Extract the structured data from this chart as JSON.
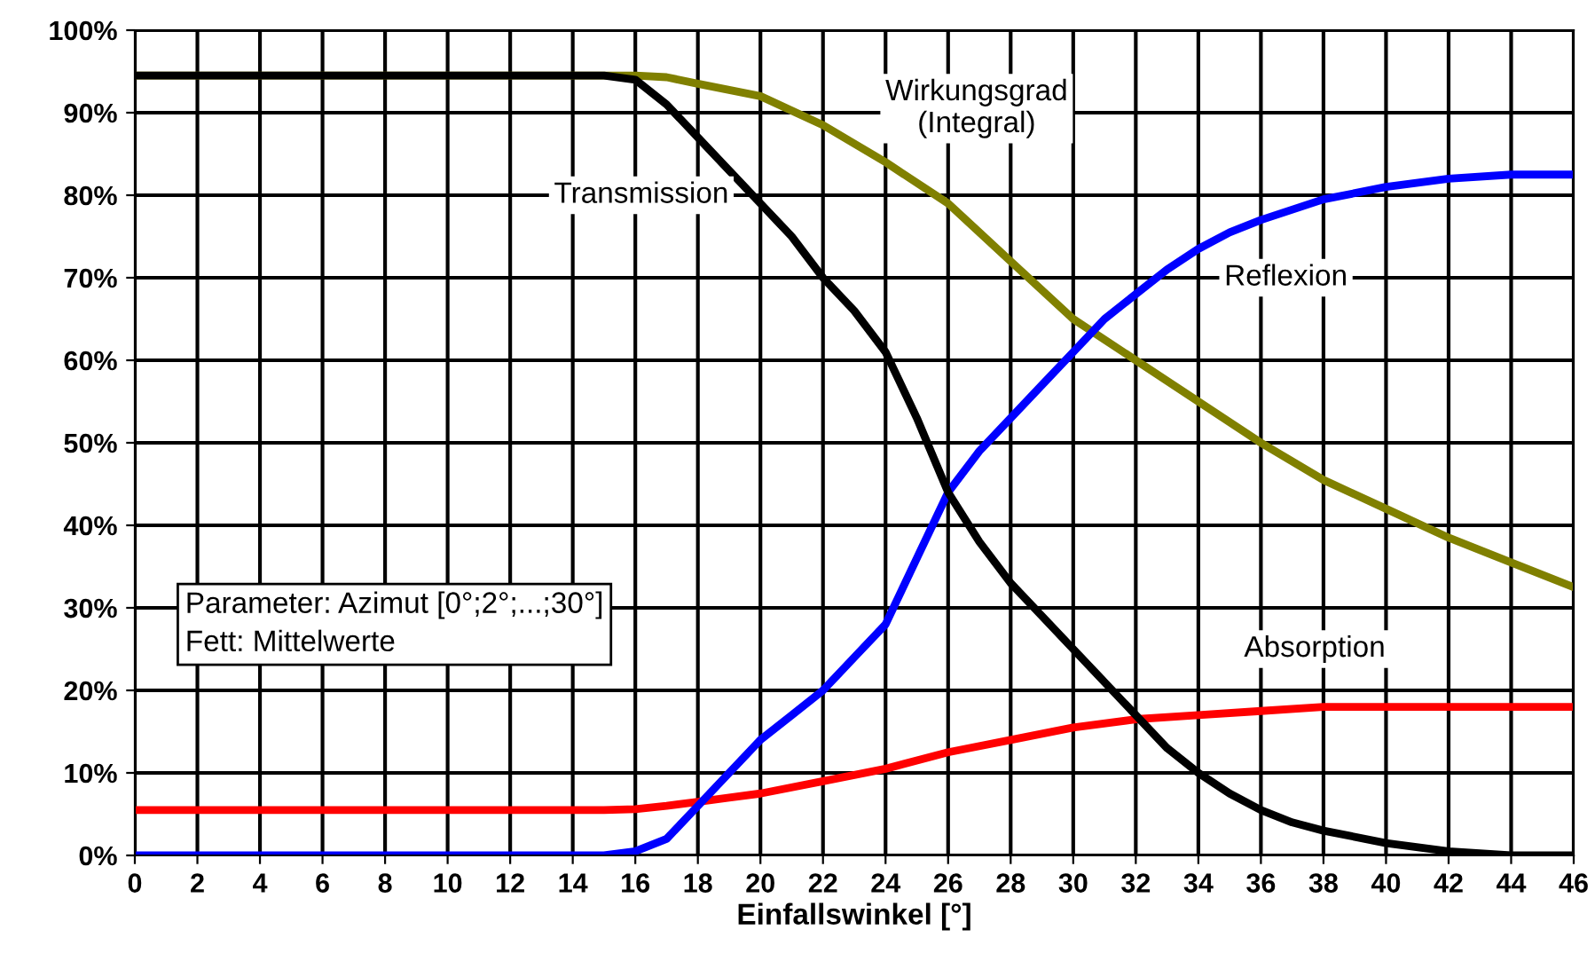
{
  "chart_data": {
    "type": "line",
    "xlabel": "Einfallswinkel [°]",
    "xlim": [
      0,
      46
    ],
    "xticks": [
      0,
      2,
      4,
      6,
      8,
      10,
      12,
      14,
      16,
      18,
      20,
      22,
      24,
      26,
      28,
      30,
      32,
      34,
      36,
      38,
      40,
      42,
      44,
      46
    ],
    "ylim": [
      0,
      100
    ],
    "yticks": [
      {
        "value": 0,
        "label": "0%"
      },
      {
        "value": 10,
        "label": "10%"
      },
      {
        "value": 20,
        "label": "20%"
      },
      {
        "value": 30,
        "label": "30%"
      },
      {
        "value": 40,
        "label": "40%"
      },
      {
        "value": 50,
        "label": "50%"
      },
      {
        "value": 60,
        "label": "60%"
      },
      {
        "value": 70,
        "label": "70%"
      },
      {
        "value": 80,
        "label": "80%"
      },
      {
        "value": 90,
        "label": "90%"
      },
      {
        "value": 100,
        "label": "100%"
      }
    ],
    "grid": true,
    "legend": false,
    "marker": "none",
    "line_style": "solid",
    "series": [
      {
        "color": "#808000",
        "x": [
          0,
          4,
          8,
          12,
          15,
          16,
          17,
          18,
          20,
          22,
          24,
          26,
          28,
          30,
          32,
          34,
          36,
          38,
          40,
          42,
          44,
          46
        ],
        "values": [
          94.5,
          94.5,
          94.5,
          94.5,
          94.5,
          94.5,
          94.3,
          93.5,
          92,
          88.5,
          84,
          79,
          72,
          65,
          60,
          55,
          50,
          45.5,
          42,
          38.5,
          35.5,
          32.5
        ]
      },
      {
        "color": "#ff0000",
        "x": [
          0,
          4,
          8,
          12,
          15,
          16,
          17,
          18,
          19,
          20,
          22,
          24,
          26,
          28,
          30,
          32,
          34,
          36,
          38,
          40,
          42,
          44,
          46
        ],
        "values": [
          5.5,
          5.5,
          5.5,
          5.5,
          5.5,
          5.6,
          6,
          6.5,
          7,
          7.5,
          9,
          10.5,
          12.5,
          14,
          15.5,
          16.5,
          17,
          17.5,
          18,
          18,
          18,
          18,
          18
        ]
      },
      {
        "color": "#0000ff",
        "x": [
          0,
          4,
          8,
          12,
          15,
          16,
          17,
          18,
          19,
          20,
          21,
          22,
          23,
          24,
          25,
          26,
          27,
          28,
          29,
          30,
          31,
          32,
          33,
          34,
          35,
          36,
          38,
          40,
          42,
          44,
          46
        ],
        "values": [
          0,
          0,
          0,
          0,
          0,
          0.5,
          2,
          6,
          10,
          14,
          17,
          20,
          24,
          28,
          36,
          44,
          49,
          53,
          57,
          61,
          65,
          68,
          71,
          73.5,
          75.5,
          77,
          79.5,
          81,
          82,
          82.5,
          82.5
        ]
      },
      {
        "color": "#000000",
        "x": [
          0,
          4,
          8,
          12,
          15,
          16,
          17,
          18,
          19,
          20,
          21,
          22,
          23,
          24,
          25,
          26,
          27,
          28,
          29,
          30,
          31,
          32,
          33,
          34,
          35,
          36,
          37,
          38,
          40,
          42,
          44,
          46
        ],
        "values": [
          94.5,
          94.5,
          94.5,
          94.5,
          94.5,
          94,
          91,
          87,
          83,
          79,
          75,
          70,
          66,
          61,
          53,
          44,
          38,
          33,
          29,
          25,
          21,
          17,
          13,
          10,
          7.5,
          5.5,
          4,
          3,
          1.5,
          0.5,
          0,
          0
        ]
      }
    ],
    "annotations": [
      "Transmission",
      "Wirkungsgrad\n(Integral)",
      "Reflexion",
      "Absorption",
      "Parameter: Azimut [0°;2°;...;30°]\nFett: Mittelwerte"
    ]
  }
}
